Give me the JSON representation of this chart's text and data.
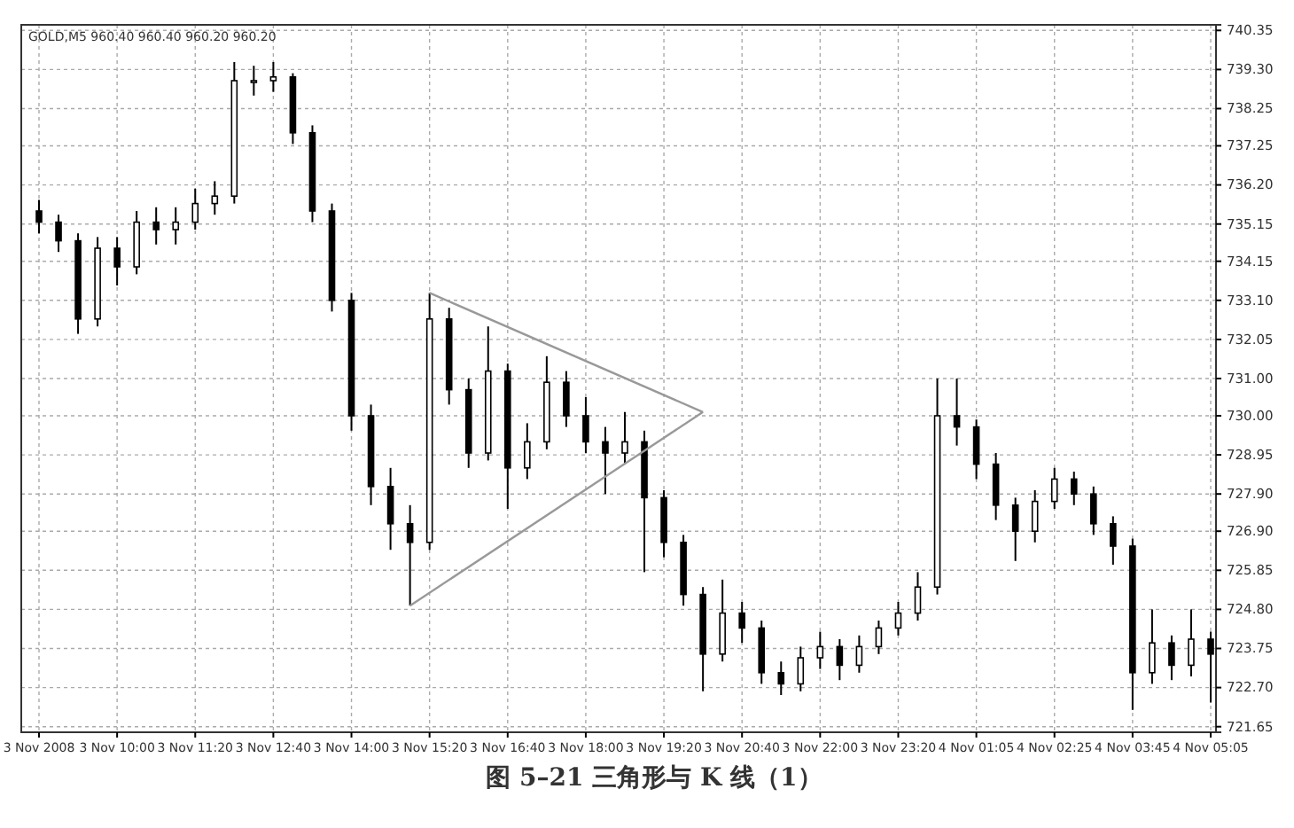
{
  "chart_data": {
    "type": "candlestick",
    "title": "图 5–21   三角形与 K 线（1）",
    "annotations": [
      "GOLD,M5 960.40 960.40 960.20 960.20"
    ],
    "categories": [
      "3 Nov 2008",
      null,
      null,
      null,
      "3 Nov 10:00",
      null,
      null,
      null,
      "3 Nov 11:20",
      null,
      null,
      null,
      "3 Nov 12:40",
      null,
      null,
      null,
      "3 Nov 14:00",
      null,
      null,
      null,
      "3 Nov 15:20",
      null,
      null,
      null,
      "3 Nov 16:40",
      null,
      null,
      null,
      "3 Nov 18:00",
      null,
      null,
      null,
      "3 Nov 19:20",
      null,
      null,
      null,
      "3 Nov 20:40",
      null,
      null,
      null,
      "3 Nov 22:00",
      null,
      null,
      null,
      "3 Nov 23:20",
      null,
      null,
      null,
      "4 Nov 01:05",
      null,
      null,
      null,
      "4 Nov 02:25",
      null,
      null,
      null,
      "4 Nov 03:45",
      null,
      null,
      null,
      "4 Nov 05:05"
    ],
    "color": "#000000",
    "ohlc": [
      [
        735.5,
        735.8,
        734.9,
        735.2
      ],
      [
        735.2,
        735.4,
        734.4,
        734.7
      ],
      [
        734.7,
        734.9,
        732.2,
        732.6
      ],
      [
        732.6,
        734.8,
        732.4,
        734.5
      ],
      [
        734.5,
        734.8,
        733.5,
        734.0
      ],
      [
        734.0,
        735.5,
        733.8,
        735.2
      ],
      [
        735.2,
        735.6,
        734.6,
        735.0
      ],
      [
        735.0,
        735.6,
        734.6,
        735.2
      ],
      [
        735.2,
        736.1,
        735.0,
        735.7
      ],
      [
        735.7,
        736.3,
        735.4,
        735.9
      ],
      [
        735.9,
        739.5,
        735.7,
        739.0
      ],
      [
        739.0,
        739.4,
        738.6,
        739.0
      ],
      [
        739.0,
        739.5,
        738.7,
        739.1
      ],
      [
        739.1,
        739.2,
        737.3,
        737.6
      ],
      [
        737.6,
        737.8,
        735.2,
        735.5
      ],
      [
        735.5,
        735.7,
        732.8,
        733.1
      ],
      [
        733.1,
        733.3,
        729.6,
        730.0
      ],
      [
        730.0,
        730.3,
        727.6,
        728.1
      ],
      [
        728.1,
        728.6,
        726.4,
        727.1
      ],
      [
        727.1,
        727.6,
        724.9,
        726.6
      ],
      [
        726.6,
        733.3,
        726.4,
        732.6
      ],
      [
        732.6,
        732.9,
        730.3,
        730.7
      ],
      [
        730.7,
        731.0,
        728.6,
        729.0
      ],
      [
        729.0,
        732.4,
        728.8,
        731.2
      ],
      [
        731.2,
        731.4,
        727.5,
        728.6
      ],
      [
        728.6,
        729.8,
        728.3,
        729.3
      ],
      [
        729.3,
        731.6,
        729.1,
        730.9
      ],
      [
        730.9,
        731.2,
        729.7,
        730.0
      ],
      [
        730.0,
        730.5,
        729.0,
        729.3
      ],
      [
        729.3,
        729.7,
        727.9,
        729.0
      ],
      [
        729.0,
        730.1,
        728.7,
        729.3
      ],
      [
        729.3,
        729.6,
        725.8,
        727.8
      ],
      [
        727.8,
        728.0,
        726.2,
        726.6
      ],
      [
        726.6,
        726.8,
        724.9,
        725.2
      ],
      [
        725.2,
        725.4,
        722.6,
        723.6
      ],
      [
        723.6,
        725.6,
        723.4,
        724.7
      ],
      [
        724.7,
        725.0,
        723.9,
        724.3
      ],
      [
        724.3,
        724.5,
        722.8,
        723.1
      ],
      [
        723.1,
        723.4,
        722.5,
        722.8
      ],
      [
        722.8,
        723.8,
        722.6,
        723.5
      ],
      [
        723.5,
        724.2,
        723.2,
        723.8
      ],
      [
        723.8,
        724.0,
        722.9,
        723.3
      ],
      [
        723.3,
        724.1,
        723.1,
        723.8
      ],
      [
        723.8,
        724.5,
        723.6,
        724.3
      ],
      [
        724.3,
        725.0,
        724.1,
        724.7
      ],
      [
        724.7,
        725.8,
        724.5,
        725.4
      ],
      [
        725.4,
        731.0,
        725.2,
        730.0
      ],
      [
        730.0,
        731.0,
        729.2,
        729.7
      ],
      [
        729.7,
        729.9,
        728.3,
        728.7
      ],
      [
        728.7,
        729.0,
        727.2,
        727.6
      ],
      [
        727.6,
        727.8,
        726.1,
        726.9
      ],
      [
        726.9,
        728.0,
        726.6,
        727.7
      ],
      [
        727.7,
        728.6,
        727.5,
        728.3
      ],
      [
        728.3,
        728.5,
        727.6,
        727.9
      ],
      [
        727.9,
        728.1,
        726.8,
        727.1
      ],
      [
        727.1,
        727.3,
        726.0,
        726.5
      ],
      [
        726.5,
        726.7,
        722.1,
        723.1
      ],
      [
        723.1,
        724.8,
        722.8,
        723.9
      ],
      [
        723.9,
        724.1,
        722.9,
        723.3
      ],
      [
        723.3,
        724.8,
        723.0,
        724.0
      ],
      [
        724.0,
        724.2,
        722.3,
        723.6
      ]
    ],
    "series": [
      {
        "type": "line",
        "color": "#999999",
        "values": [
          null,
          null,
          null,
          null,
          null,
          null,
          null,
          null,
          null,
          null,
          null,
          null,
          null,
          null,
          null,
          null,
          null,
          null,
          null,
          null,
          733.3,
          null,
          null,
          null,
          null,
          null,
          null,
          null,
          null,
          null,
          null,
          null,
          null,
          null,
          730.1,
          null,
          null,
          null,
          null,
          null,
          null,
          null,
          null,
          null,
          null,
          null,
          null,
          null,
          null,
          null,
          null,
          null,
          null,
          null,
          null,
          null,
          null,
          null,
          null,
          null,
          null
        ]
      },
      {
        "type": "line",
        "color": "#999999",
        "values": [
          null,
          null,
          null,
          null,
          null,
          null,
          null,
          null,
          null,
          null,
          null,
          null,
          null,
          null,
          null,
          null,
          null,
          null,
          null,
          724.9,
          null,
          null,
          null,
          null,
          null,
          null,
          null,
          null,
          null,
          null,
          null,
          null,
          null,
          null,
          730.1,
          null,
          null,
          null,
          null,
          null,
          null,
          null,
          null,
          null,
          null,
          null,
          null,
          null,
          null,
          null,
          null,
          null,
          null,
          null,
          null,
          null,
          null,
          null,
          null,
          null,
          null
        ]
      }
    ],
    "ylim": [
      721.5,
      740.5
    ],
    "yticks": [
      740.35,
      {
        "value": 739.3,
        "label": "739.30"
      },
      738.25,
      737.25,
      {
        "value": 736.2,
        "label": "736.20"
      },
      735.15,
      734.15,
      {
        "value": 733.1,
        "label": "733.10"
      },
      732.05,
      {
        "value": 731,
        "label": "731.00"
      },
      {
        "value": 730,
        "label": "730.00"
      },
      728.95,
      {
        "value": 727.9,
        "label": "727.90"
      },
      {
        "value": 726.9,
        "label": "726.90"
      },
      725.85,
      {
        "value": 724.8,
        "label": "724.80"
      },
      723.75,
      {
        "value": 722.7,
        "label": "722.70"
      },
      721.65
    ],
    "grid": true
  }
}
